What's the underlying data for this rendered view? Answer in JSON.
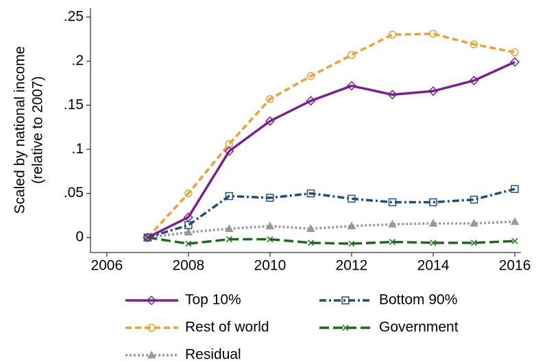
{
  "chart_data": {
    "type": "line",
    "ylabel": [
      "Scaled by national income",
      "(relative to 2007)"
    ],
    "x": [
      2007,
      2008,
      2009,
      2010,
      2011,
      2012,
      2013,
      2014,
      2015,
      2016
    ],
    "xlim": [
      2005.6,
      2016.15
    ],
    "xticks": [
      2006,
      2008,
      2010,
      2012,
      2014,
      2016
    ],
    "ylim": [
      -0.017,
      0.26
    ],
    "yticks": [
      {
        "value": 0,
        "label": "0"
      },
      {
        "value": 0.05,
        "label": ".05"
      },
      {
        "value": 0.1,
        "label": ".1"
      },
      {
        "value": 0.15,
        "label": ".15"
      },
      {
        "value": 0.2,
        "label": ".2"
      },
      {
        "value": 0.25,
        "label": ".25"
      }
    ],
    "grid": false,
    "legend": "bottom",
    "series": [
      {
        "name": "Top 10%",
        "color": "#7a1f8f",
        "marker": "diamond",
        "dash": "solid",
        "values": [
          0,
          0.023,
          0.098,
          0.132,
          0.155,
          0.172,
          0.162,
          0.166,
          0.178,
          0.199
        ]
      },
      {
        "name": "Bottom 90%",
        "color": "#1f4e79",
        "marker": "square",
        "dash": "dashdot",
        "values": [
          0,
          0.014,
          0.047,
          0.045,
          0.05,
          0.044,
          0.04,
          0.04,
          0.043,
          0.055
        ]
      },
      {
        "name": "Rest of world",
        "color": "#f0a030",
        "marker": "circle",
        "dash": "dash",
        "values": [
          0,
          0.05,
          0.106,
          0.157,
          0.183,
          0.207,
          0.23,
          0.231,
          0.219,
          0.21
        ]
      },
      {
        "name": "Government",
        "color": "#1a6b1a",
        "marker": "x",
        "dash": "longdash",
        "values": [
          0,
          -0.007,
          -0.002,
          -0.002,
          -0.006,
          -0.007,
          -0.005,
          -0.006,
          -0.006,
          -0.004
        ]
      },
      {
        "name": "Residual",
        "color": "#999999",
        "marker": "triangle",
        "dash": "dot",
        "values": [
          0,
          0.006,
          0.01,
          0.013,
          0.01,
          0.013,
          0.015,
          0.016,
          0.016,
          0.018
        ]
      }
    ]
  }
}
